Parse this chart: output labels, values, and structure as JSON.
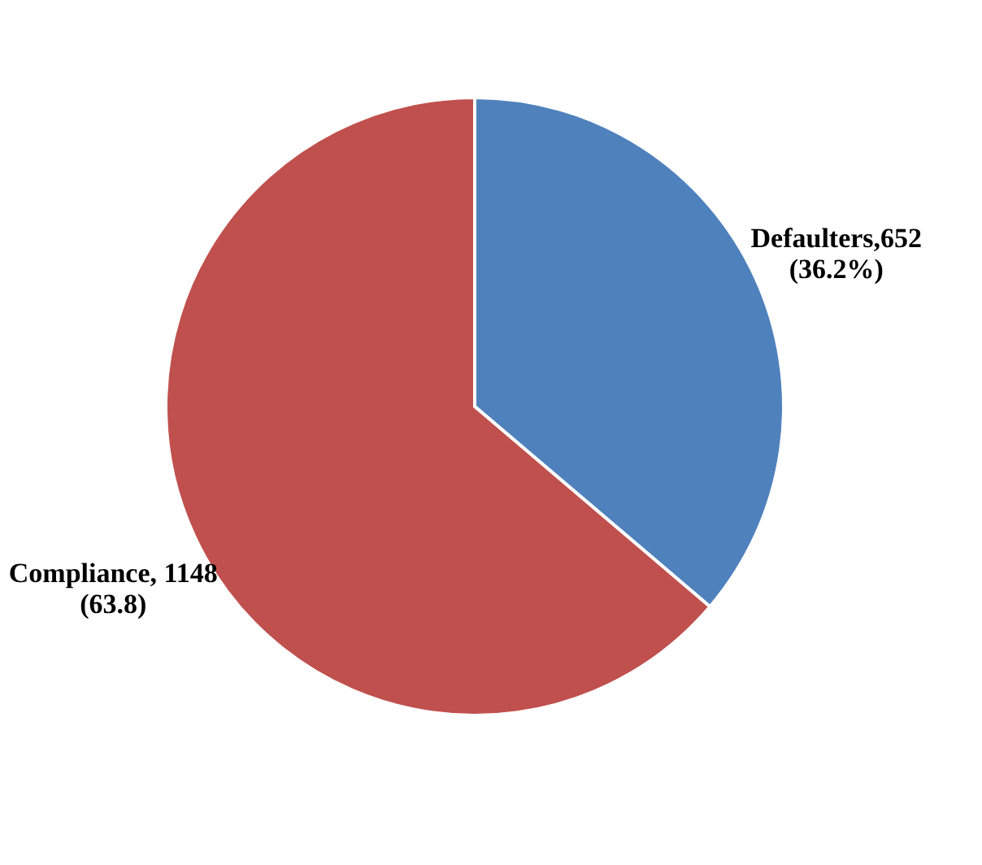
{
  "chart_data": {
    "type": "pie",
    "categories": [
      "Defaulters",
      "Compliance"
    ],
    "values": [
      652,
      1148
    ],
    "colors": [
      "#4f81bd",
      "#c0504d"
    ],
    "value_labels": [
      ",652\n(36.2%)",
      ", 1148\n(63.8)"
    ],
    "legend": false
  }
}
